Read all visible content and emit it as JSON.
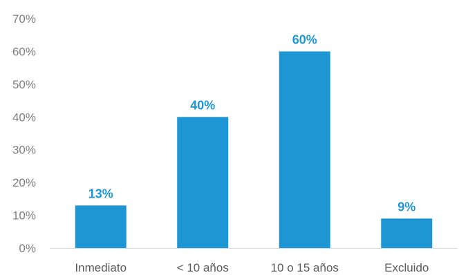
{
  "chart_data": {
    "type": "bar",
    "categories": [
      "Inmediato",
      "< 10 años",
      "10 o 15 años",
      "Excluido"
    ],
    "values": [
      13,
      40,
      60,
      9
    ],
    "data_labels": [
      "13%",
      "40%",
      "60%",
      "9%"
    ],
    "yticks": [
      "0%",
      "10%",
      "20%",
      "30%",
      "40%",
      "50%",
      "60%",
      "70%"
    ],
    "ylim": [
      0,
      70
    ],
    "grid": false,
    "legend": "none",
    "bar_color": "#1f96d4",
    "label_color": "#1f96d4",
    "title": "",
    "xlabel": "",
    "ylabel": ""
  }
}
